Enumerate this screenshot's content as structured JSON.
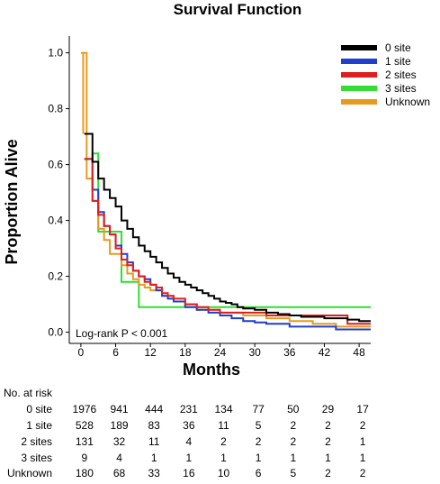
{
  "chart_data": {
    "type": "line",
    "title": "Survival Function",
    "xlabel": "Months",
    "ylabel": "Proportion Alive",
    "xlim": [
      -2,
      50
    ],
    "ylim": [
      -0.04,
      1.06
    ],
    "xticks": [
      0,
      6,
      12,
      18,
      24,
      30,
      36,
      42,
      48
    ],
    "yticks": [
      0.0,
      0.2,
      0.4,
      0.6,
      0.8,
      1.0
    ],
    "ytick_labels": [
      "0.0",
      "0.2",
      "0.4",
      "0.6",
      "0.8",
      "1.0"
    ],
    "grid": false,
    "legend_position": "top-right",
    "annotation": "Log-rank P < 0.001",
    "step": true,
    "series": [
      {
        "name": "0 site",
        "color": "#000000",
        "x": [
          1,
          2,
          3,
          4,
          5,
          6,
          7,
          8,
          9,
          10,
          11,
          12,
          13,
          14,
          15,
          16,
          17,
          18,
          19,
          20,
          21,
          22,
          23,
          24,
          25,
          26,
          27,
          28,
          30,
          32,
          34,
          36,
          38,
          40,
          42,
          44,
          46,
          48,
          50
        ],
        "y": [
          0.71,
          0.61,
          0.55,
          0.51,
          0.48,
          0.45,
          0.4,
          0.37,
          0.34,
          0.31,
          0.29,
          0.27,
          0.25,
          0.23,
          0.21,
          0.195,
          0.18,
          0.17,
          0.16,
          0.15,
          0.14,
          0.13,
          0.12,
          0.11,
          0.105,
          0.1,
          0.09,
          0.085,
          0.08,
          0.07,
          0.065,
          0.06,
          0.055,
          0.055,
          0.05,
          0.05,
          0.045,
          0.04,
          0.04
        ]
      },
      {
        "name": "1 site",
        "color": "#1f3fcc",
        "x": [
          1,
          2,
          3,
          4,
          5,
          6,
          7,
          8,
          9,
          10,
          11,
          12,
          13,
          14,
          15,
          16,
          18,
          20,
          22,
          24,
          26,
          28,
          30,
          32,
          36,
          40,
          44,
          48,
          50
        ],
        "y": [
          0.62,
          0.51,
          0.43,
          0.38,
          0.35,
          0.31,
          0.28,
          0.25,
          0.22,
          0.2,
          0.19,
          0.17,
          0.15,
          0.13,
          0.12,
          0.11,
          0.09,
          0.08,
          0.07,
          0.06,
          0.05,
          0.04,
          0.035,
          0.03,
          0.02,
          0.02,
          0.01,
          0.01,
          0.01
        ]
      },
      {
        "name": "2 sites",
        "color": "#dd1f1f",
        "x": [
          1,
          2,
          3,
          4,
          5,
          6,
          7,
          8,
          9,
          10,
          11,
          12,
          13,
          14,
          15,
          16,
          18,
          20,
          22,
          24,
          28,
          32,
          36,
          40,
          44,
          46,
          50
        ],
        "y": [
          0.62,
          0.47,
          0.42,
          0.38,
          0.35,
          0.3,
          0.26,
          0.24,
          0.22,
          0.2,
          0.18,
          0.17,
          0.16,
          0.14,
          0.13,
          0.12,
          0.1,
          0.09,
          0.08,
          0.07,
          0.07,
          0.06,
          0.06,
          0.06,
          0.06,
          0.03,
          0.03
        ]
      },
      {
        "name": "3 sites",
        "color": "#33dd33",
        "x": [
          1,
          2,
          3,
          5,
          7,
          10,
          12,
          16,
          20,
          24,
          50
        ],
        "y": [
          0.62,
          0.64,
          0.36,
          0.36,
          0.18,
          0.09,
          0.09,
          0.09,
          0.09,
          0.09,
          0.09
        ]
      },
      {
        "name": "Unknown",
        "color": "#e69b1e",
        "x": [
          0,
          0.5,
          1,
          1.5,
          2,
          3,
          4,
          5,
          6,
          7,
          8,
          9,
          10,
          11,
          12,
          14,
          16,
          18,
          20,
          24,
          28,
          32,
          36,
          40,
          44,
          48,
          50
        ],
        "y": [
          1.0,
          1.0,
          0.55,
          0.55,
          0.47,
          0.37,
          0.33,
          0.28,
          0.28,
          0.24,
          0.21,
          0.19,
          0.17,
          0.16,
          0.15,
          0.13,
          0.11,
          0.1,
          0.08,
          0.07,
          0.06,
          0.05,
          0.04,
          0.03,
          0.02,
          0.02,
          0.02
        ]
      }
    ],
    "risk_table": {
      "header": "No. at risk",
      "times": [
        0,
        6,
        12,
        18,
        24,
        30,
        36,
        42,
        48
      ],
      "rows": [
        {
          "label": "0 site",
          "values": [
            "1976",
            "941",
            "444",
            "231",
            "134",
            "77",
            "50",
            "29",
            "17"
          ]
        },
        {
          "label": "1 site",
          "values": [
            "528",
            "189",
            "83",
            "36",
            "11",
            "5",
            "2",
            "2",
            "2"
          ]
        },
        {
          "label": "2 sites",
          "values": [
            "131",
            "32",
            "11",
            "4",
            "2",
            "2",
            "2",
            "2",
            "1"
          ]
        },
        {
          "label": "3 sites",
          "values": [
            "9",
            "4",
            "1",
            "1",
            "1",
            "1",
            "1",
            "1",
            "1"
          ]
        },
        {
          "label": "Unknown",
          "values": [
            "180",
            "68",
            "33",
            "16",
            "10",
            "6",
            "5",
            "2",
            "2"
          ]
        }
      ]
    }
  }
}
